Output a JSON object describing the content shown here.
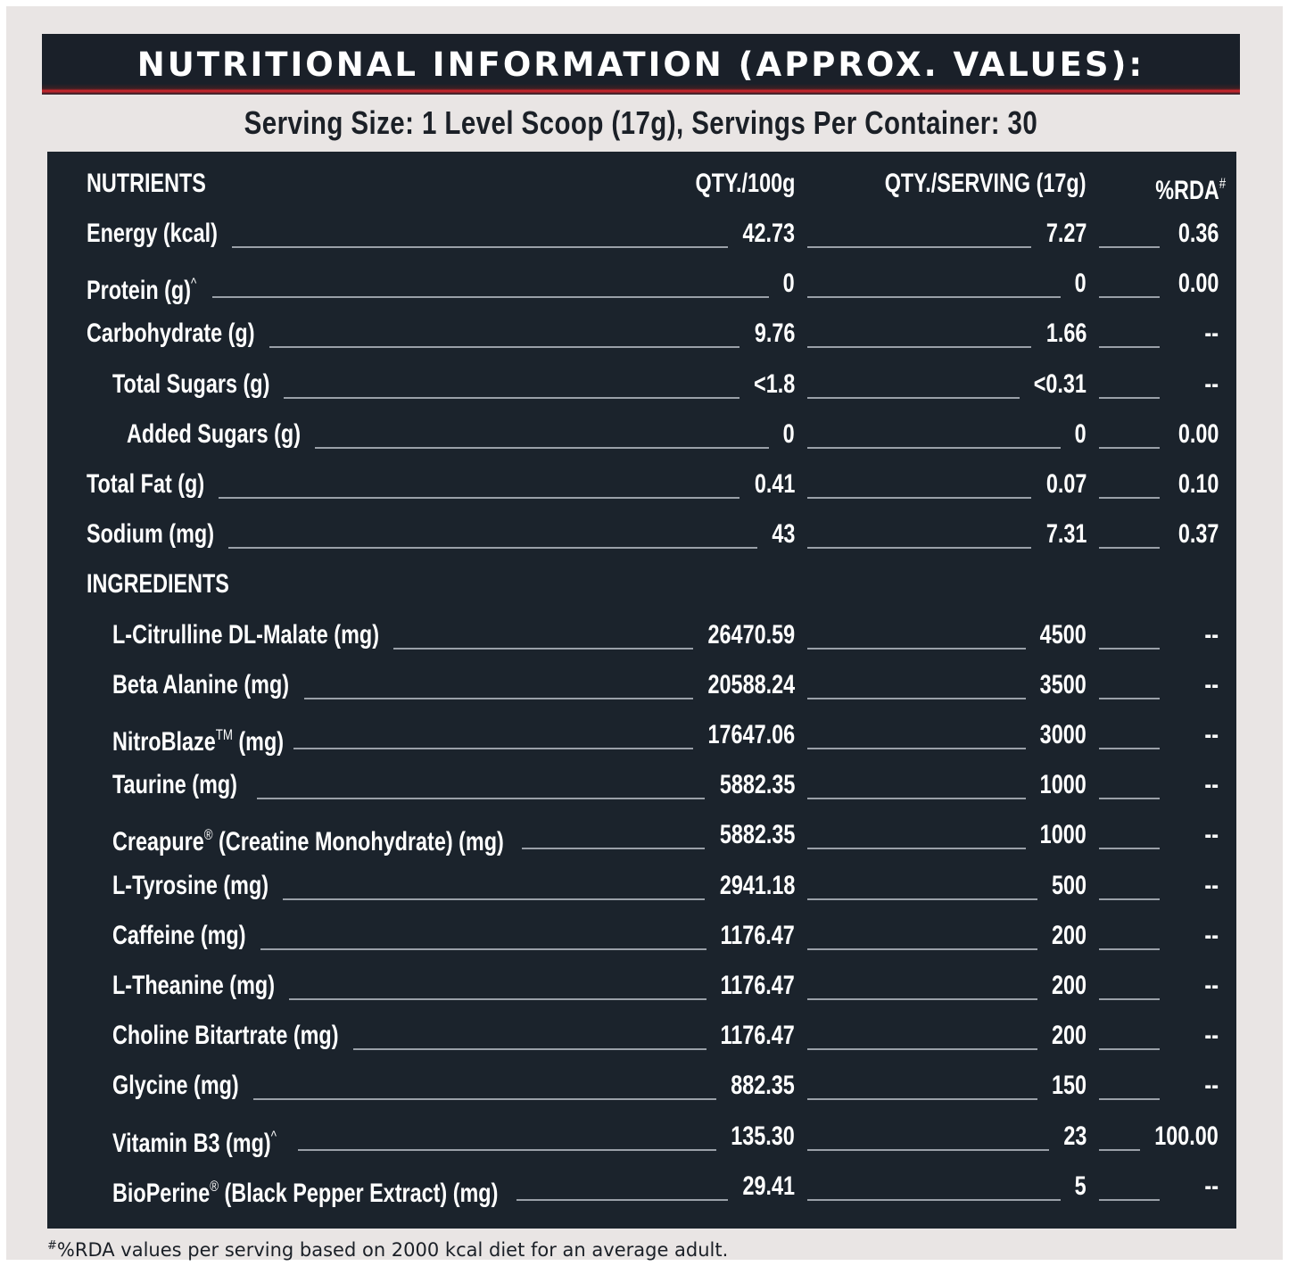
{
  "title": "NUTRITIONAL INFORMATION (APPROX. VALUES):",
  "serving_line": "Serving Size: 1 Level Scoop (17g), Servings Per Container: 30",
  "header": {
    "nutrients": "NUTRIENTS",
    "qty100": "QTY./100g",
    "qtyserving": "QTY./SERVING (17g)",
    "rda": "%RDA",
    "rda_mark": "#"
  },
  "nutrients": [
    {
      "label": "Energy (kcal)",
      "mark": "",
      "q100": "42.73",
      "qserv": "7.27",
      "rda": "0.36"
    },
    {
      "label": "Protein (g)",
      "mark": "^",
      "q100": "0",
      "qserv": "0",
      "rda": "0.00"
    },
    {
      "label": "Carbohydrate (g)",
      "mark": "",
      "q100": "9.76",
      "qserv": "1.66",
      "rda": "--"
    },
    {
      "label": "Total Sugars (g)",
      "mark": "",
      "q100": "<1.8",
      "qserv": "<0.31",
      "rda": "--"
    },
    {
      "label": "Added Sugars (g)",
      "mark": "",
      "q100": "0",
      "qserv": "0",
      "rda": "0.00"
    },
    {
      "label": "Total Fat (g)",
      "mark": "",
      "q100": "0.41",
      "qserv": "0.07",
      "rda": "0.10"
    },
    {
      "label": "Sodium (mg)",
      "mark": "",
      "q100": "43",
      "qserv": "7.31",
      "rda": "0.37"
    }
  ],
  "ingredients_heading": "INGREDIENTS",
  "ingredients": [
    {
      "label": "L-Citrulline DL-Malate (mg)",
      "pre": "",
      "mark": "",
      "post": "",
      "q100": "26470.59",
      "qserv": "4500",
      "rda": "--"
    },
    {
      "label": "Beta Alanine (mg)",
      "pre": "",
      "mark": "",
      "post": "",
      "q100": "20588.24",
      "qserv": "3500",
      "rda": "--"
    },
    {
      "label": "NitroBlaze™ (mg)",
      "pre": "NitroBlaze",
      "mark": "TM",
      "post": " (mg)",
      "q100": "17647.06",
      "qserv": "3000",
      "rda": "--"
    },
    {
      "label": "Taurine  (mg)",
      "pre": "",
      "mark": "",
      "post": "",
      "q100": "5882.35",
      "qserv": "1000",
      "rda": "--"
    },
    {
      "label": "Creapure® (Creatine Monohydrate) (mg)",
      "pre": "Creapure",
      "mark": "®",
      "post": " (Creatine Monohydrate) (mg)",
      "q100": "5882.35",
      "qserv": "1000",
      "rda": "--"
    },
    {
      "label": "L-Tyrosine (mg)",
      "pre": "",
      "mark": "",
      "post": "",
      "q100": "2941.18",
      "qserv": "500",
      "rda": "--"
    },
    {
      "label": "Caffeine (mg)",
      "pre": "",
      "mark": "",
      "post": "",
      "q100": "1176.47",
      "qserv": "200",
      "rda": "--"
    },
    {
      "label": "L-Theanine (mg)",
      "pre": "",
      "mark": "",
      "post": "",
      "q100": "1176.47",
      "qserv": "200",
      "rda": "--"
    },
    {
      "label": "Choline Bitartrate (mg)",
      "pre": "",
      "mark": "",
      "post": "",
      "q100": "1176.47",
      "qserv": "200",
      "rda": "--"
    },
    {
      "label": "Glycine (mg)",
      "pre": "",
      "mark": "",
      "post": "",
      "q100": "882.35",
      "qserv": "150",
      "rda": "--"
    },
    {
      "label": "Vitamin B3 (mg)^",
      "pre": "Vitamin B3 (mg)",
      "mark": "^",
      "post": "",
      "q100": "135.30",
      "qserv": "23",
      "rda": "100.00"
    },
    {
      "label": "BioPerine® (Black Pepper Extract) (mg)",
      "pre": "BioPerine",
      "mark": "®",
      "post": " (Black Pepper Extract) (mg)",
      "q100": "29.41",
      "qserv": "5",
      "rda": "--"
    }
  ],
  "footnote_mark": "#",
  "footnote": "%RDA values per serving based on 2000 kcal diet for an average adult."
}
